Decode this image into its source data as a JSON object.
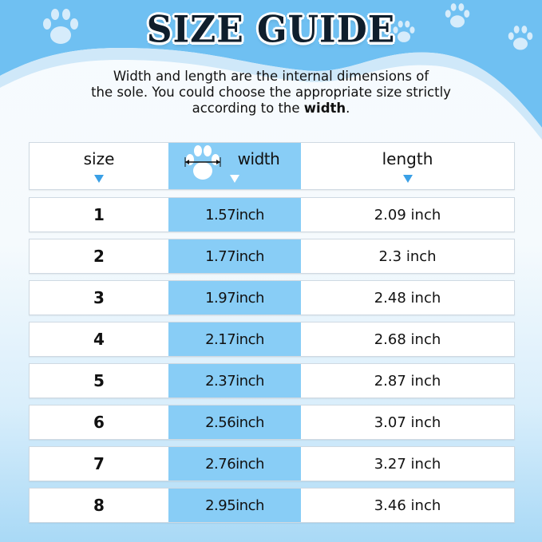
{
  "title": "SIZE GUIDE",
  "intro": {
    "line1": "Width and length are the internal dimensions of",
    "line2": "the sole. You could choose the appropriate size strictly",
    "line3_pre": "according to the ",
    "line3_bold": "width",
    "line3_post": "."
  },
  "colors": {
    "top_blue": "#6fc0f2",
    "width_column": "#88cdf6",
    "arrow": "#3aa0e6"
  },
  "table": {
    "headers": {
      "size": "size",
      "width": "width",
      "length": "length"
    },
    "rows": [
      {
        "size": "1",
        "width": "1.57inch",
        "length": "2.09 inch"
      },
      {
        "size": "2",
        "width": "1.77inch",
        "length": "2.3 inch"
      },
      {
        "size": "3",
        "width": "1.97inch",
        "length": "2.48 inch"
      },
      {
        "size": "4",
        "width": "2.17inch",
        "length": "2.68 inch"
      },
      {
        "size": "5",
        "width": "2.37inch",
        "length": "2.87 inch"
      },
      {
        "size": "6",
        "width": "2.56inch",
        "length": "3.07 inch"
      },
      {
        "size": "7",
        "width": "2.76inch",
        "length": "3.27 inch"
      },
      {
        "size": "8",
        "width": "2.95inch",
        "length": "3.46 inch"
      }
    ]
  }
}
